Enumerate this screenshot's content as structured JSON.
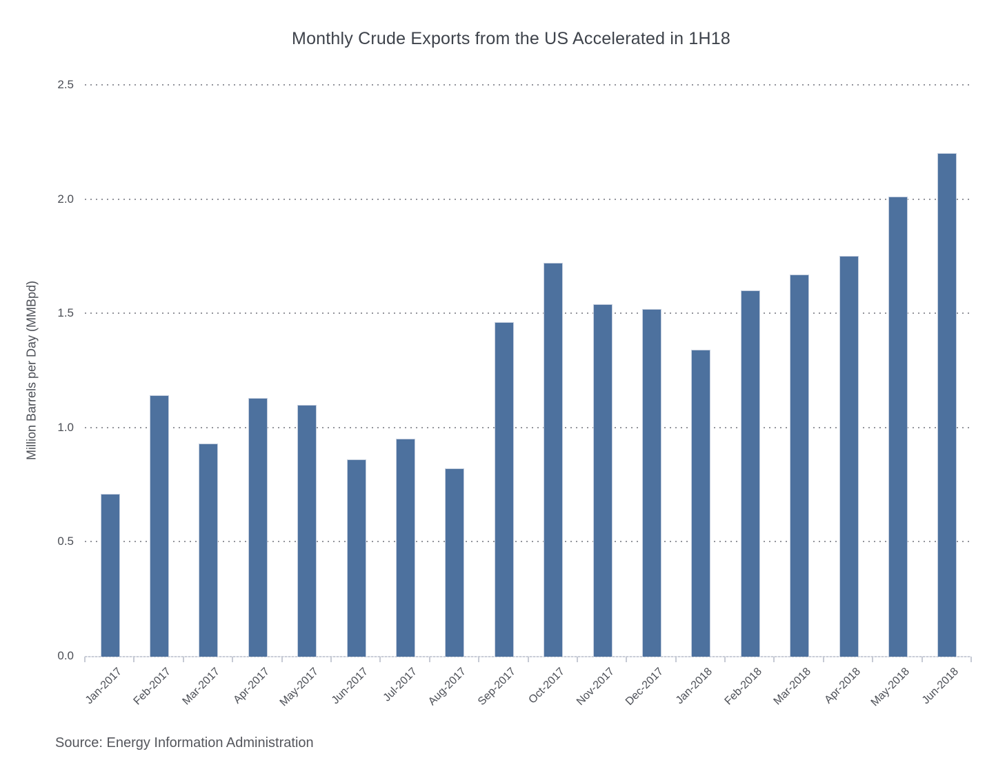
{
  "title": "Monthly Crude Exports from the US Accelerated in 1H18",
  "source": "Source: Energy Information Administration",
  "colors": {
    "bar_fill": "#4d719e",
    "bar_edge": "#c5cfdf",
    "grid_dot": "#92939a",
    "axis_line": "#c9cdd7",
    "axis_tick": "#c6cad4",
    "title_text": "#3e434b",
    "tick_text": "#4b4e55",
    "source_text": "#54565c"
  },
  "chart_data": {
    "type": "bar",
    "title": "Monthly Crude Exports from the US Accelerated in 1H18",
    "xlabel": "",
    "ylabel": "Million Barrels per Day (MMBpd)",
    "categories": [
      "Jan-2017",
      "Feb-2017",
      "Mar-2017",
      "Apr-2017",
      "May-2017",
      "Jun-2017",
      "Jul-2017",
      "Aug-2017",
      "Sep-2017",
      "Oct-2017",
      "Nov-2017",
      "Dec-2017",
      "Jan-2018",
      "Feb-2018",
      "Mar-2018",
      "Apr-2018",
      "May-2018",
      "Jun-2018"
    ],
    "values": [
      0.71,
      1.14,
      0.93,
      1.13,
      1.1,
      0.86,
      0.95,
      0.82,
      1.46,
      1.72,
      1.54,
      1.52,
      1.34,
      1.6,
      1.67,
      1.75,
      2.01,
      2.2
    ],
    "ylim": [
      0,
      2.5
    ],
    "yticks": [
      0.0,
      0.5,
      1.0,
      1.5,
      2.0,
      2.5
    ],
    "ytick_format_decimals": 1,
    "grid": "horizontal-dotted",
    "legend": "none",
    "source": "Source: Energy Information Administration"
  }
}
